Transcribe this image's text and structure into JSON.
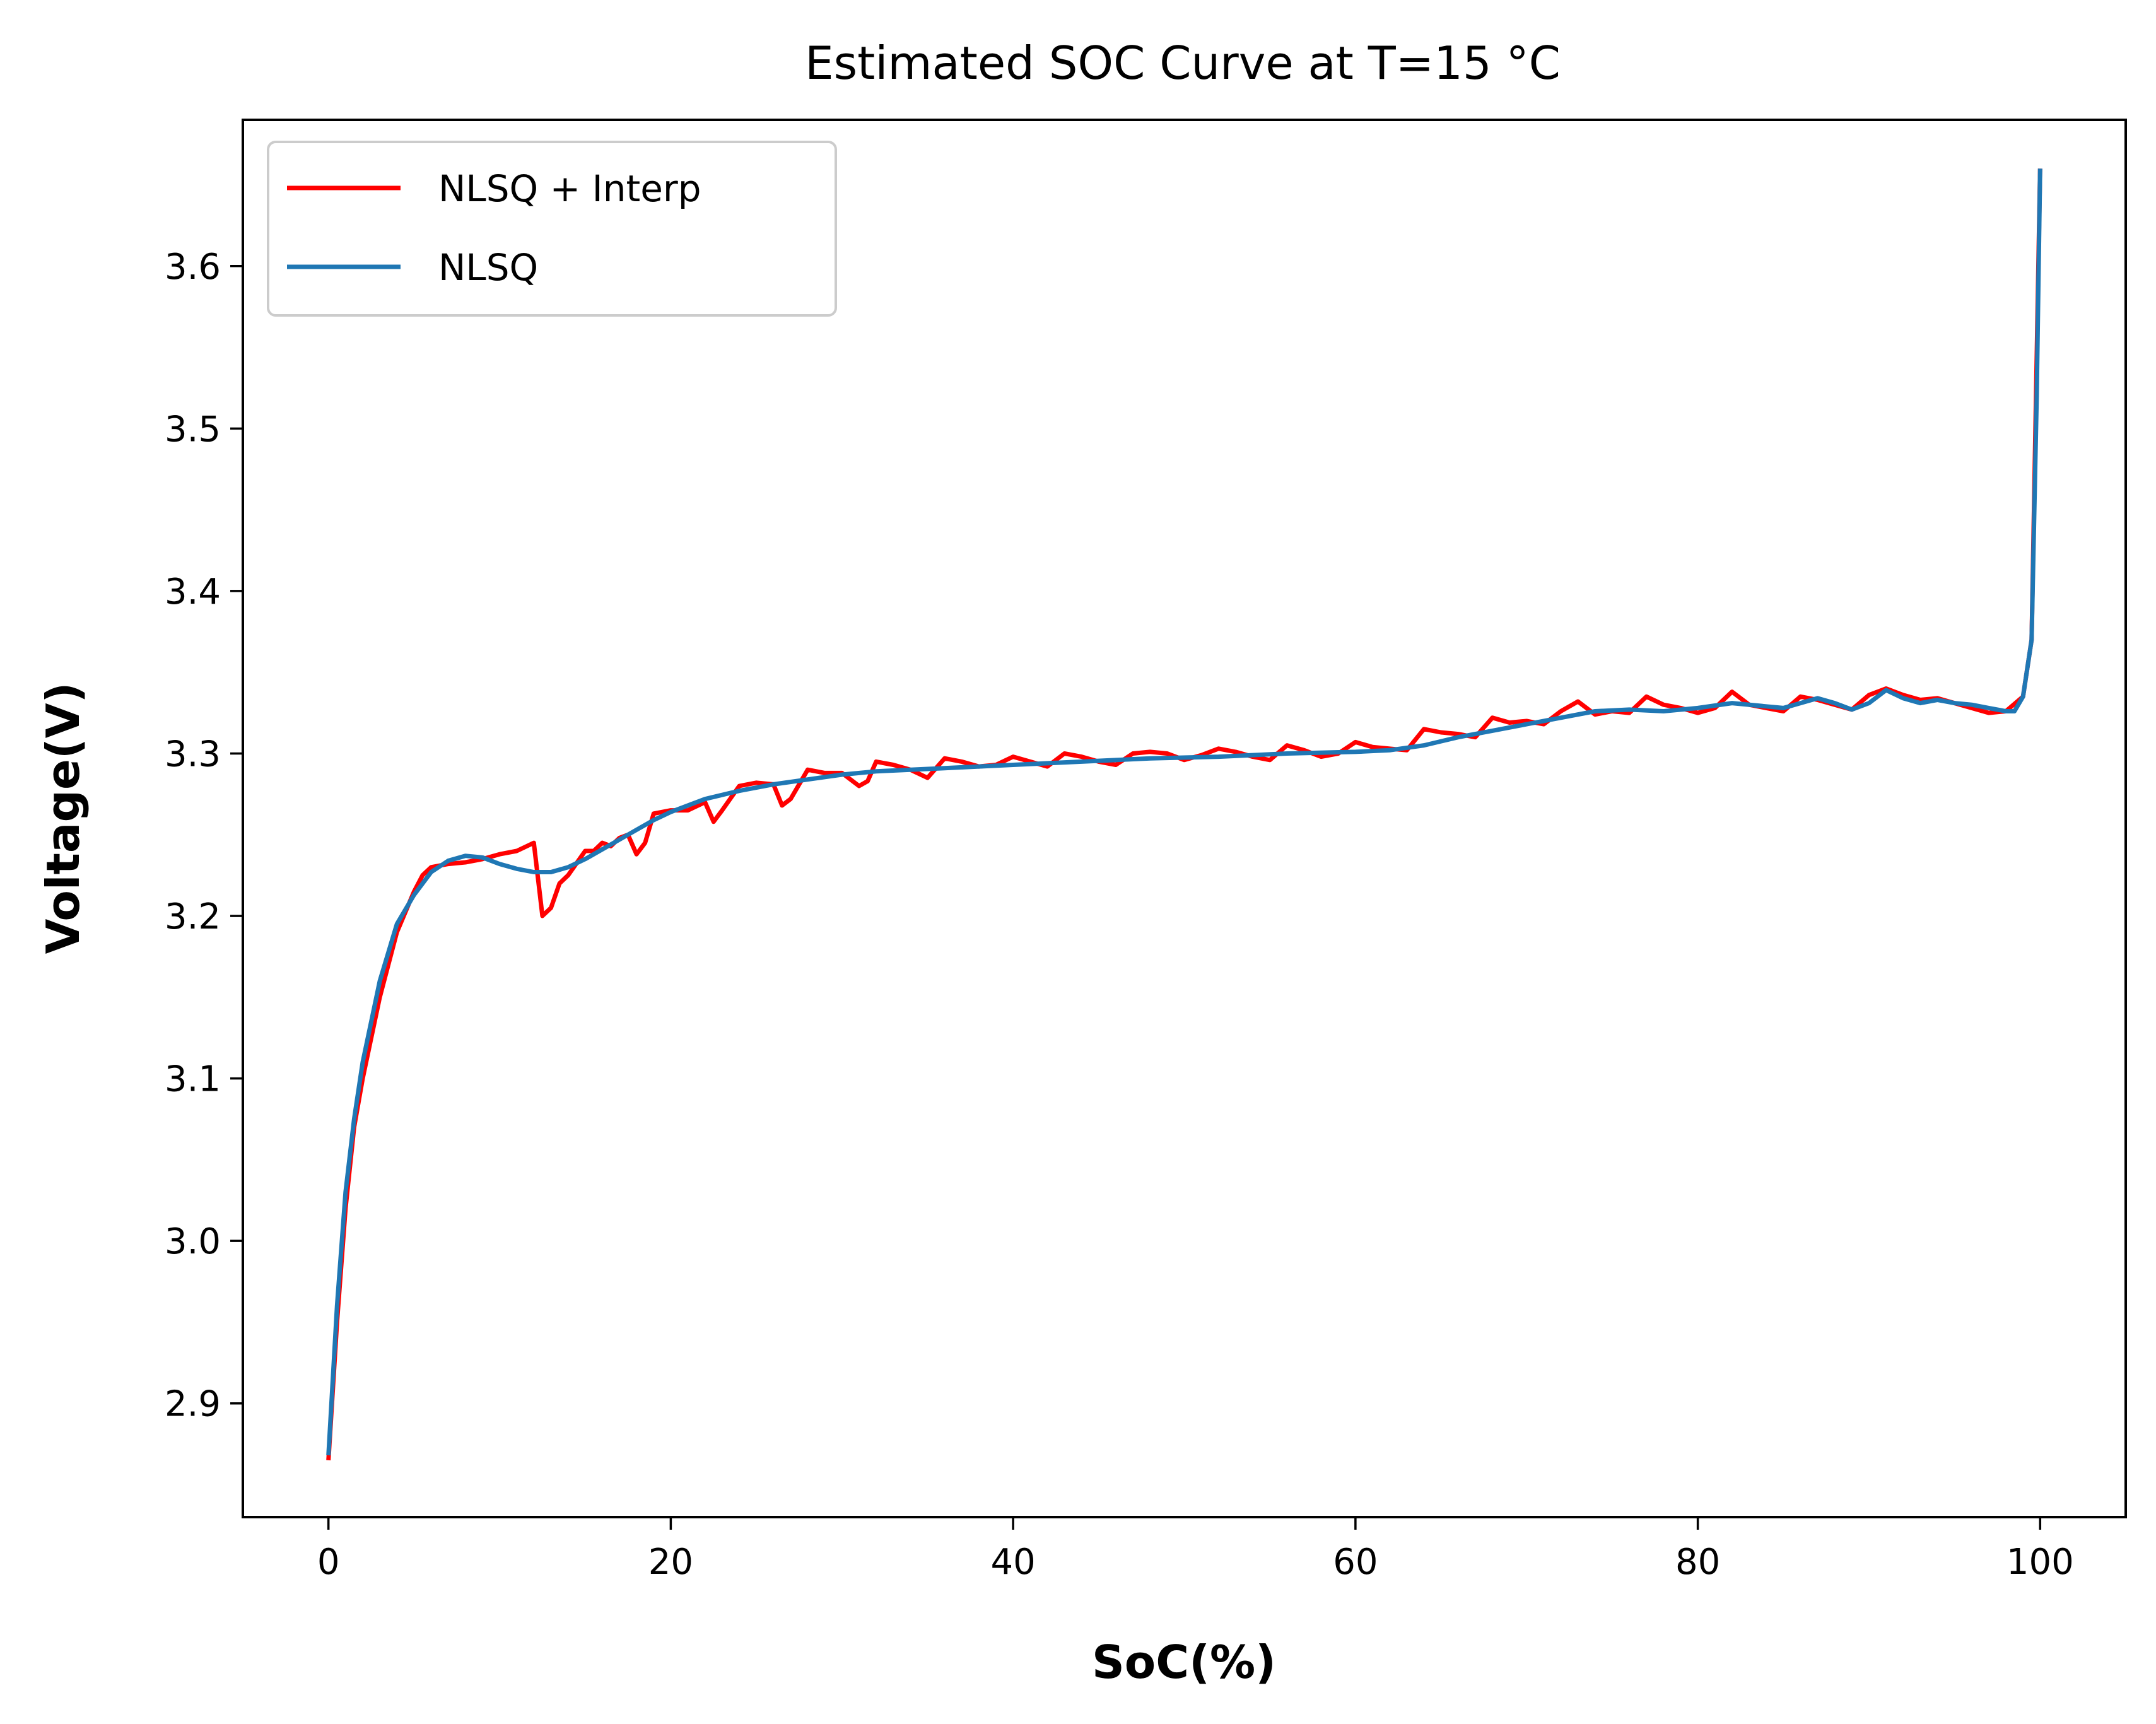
{
  "chart_data": {
    "type": "line",
    "title": "Estimated SOC Curve at T=15 °C",
    "xlabel": "SoC(%)",
    "ylabel": "Voltage(V)",
    "xlim": [
      -5,
      105
    ],
    "ylim": [
      2.83,
      3.69
    ],
    "xticks": [
      0,
      20,
      40,
      60,
      80,
      100
    ],
    "xtick_labels": [
      "0",
      "20",
      "40",
      "60",
      "80",
      "100"
    ],
    "yticks": [
      2.9,
      3.0,
      3.1,
      3.2,
      3.3,
      3.4,
      3.5,
      3.6
    ],
    "ytick_labels": [
      "2.9",
      "3.0",
      "3.1",
      "3.2",
      "3.3",
      "3.4",
      "3.5",
      "3.6"
    ],
    "grid": false,
    "legend_position": "top-left",
    "series": [
      {
        "name": "NLSQ + Interp",
        "color": "#ff0000",
        "x": [
          0,
          0.5,
          1,
          1.5,
          2,
          3,
          4,
          5,
          5.5,
          6,
          7,
          8,
          9,
          10,
          11,
          12,
          12.5,
          13,
          13.5,
          14,
          15,
          15.5,
          16,
          16.5,
          17,
          17.5,
          18,
          18.5,
          19,
          20,
          21,
          22,
          22.5,
          23,
          24,
          25,
          26,
          26.5,
          27,
          28,
          29,
          30,
          31,
          31.5,
          32,
          33,
          34,
          35,
          36,
          37,
          38,
          39,
          40,
          41,
          42,
          43,
          44,
          45,
          46,
          47,
          48,
          49,
          50,
          51,
          52,
          53,
          54,
          55,
          56,
          57,
          58,
          59,
          60,
          61,
          62,
          63,
          64,
          65,
          66,
          67,
          68,
          69,
          70,
          71,
          72,
          73,
          74,
          75,
          76,
          77,
          78,
          79,
          80,
          81,
          82,
          83,
          84,
          85,
          86,
          87,
          88,
          89,
          90,
          91,
          92,
          93,
          94,
          95,
          96,
          97,
          98,
          99,
          99.5,
          100
        ],
        "y": [
          2.865,
          2.95,
          3.02,
          3.07,
          3.1,
          3.15,
          3.19,
          3.215,
          3.225,
          3.23,
          3.232,
          3.233,
          3.235,
          3.238,
          3.24,
          3.245,
          3.2,
          3.205,
          3.22,
          3.225,
          3.24,
          3.24,
          3.245,
          3.243,
          3.248,
          3.25,
          3.238,
          3.245,
          3.263,
          3.265,
          3.265,
          3.27,
          3.258,
          3.265,
          3.28,
          3.282,
          3.281,
          3.268,
          3.272,
          3.29,
          3.288,
          3.288,
          3.28,
          3.283,
          3.295,
          3.293,
          3.29,
          3.285,
          3.297,
          3.295,
          3.292,
          3.293,
          3.298,
          3.295,
          3.292,
          3.3,
          3.298,
          3.295,
          3.293,
          3.3,
          3.301,
          3.3,
          3.296,
          3.299,
          3.303,
          3.301,
          3.298,
          3.296,
          3.305,
          3.302,
          3.298,
          3.3,
          3.307,
          3.304,
          3.303,
          3.302,
          3.315,
          3.313,
          3.312,
          3.31,
          3.322,
          3.319,
          3.32,
          3.318,
          3.326,
          3.332,
          3.324,
          3.326,
          3.325,
          3.335,
          3.33,
          3.328,
          3.325,
          3.328,
          3.338,
          3.33,
          3.328,
          3.326,
          3.335,
          3.333,
          3.33,
          3.327,
          3.336,
          3.34,
          3.336,
          3.333,
          3.334,
          3.331,
          3.328,
          3.325,
          3.326,
          3.335,
          3.37,
          3.66
        ]
      },
      {
        "name": "NLSQ",
        "color": "#1f77b4",
        "x": [
          0,
          0.5,
          1,
          1.5,
          2,
          3,
          4,
          5,
          6,
          7,
          8,
          9,
          10,
          11,
          12,
          13,
          14,
          15,
          16,
          17,
          18,
          19,
          20,
          22,
          24,
          26,
          28,
          30,
          32,
          34,
          36,
          38,
          40,
          44,
          48,
          52,
          56,
          60,
          62,
          64,
          66,
          68,
          70,
          72,
          74,
          76,
          78,
          80,
          82,
          84,
          85,
          86,
          87,
          88,
          89,
          90,
          91,
          92,
          93,
          94,
          95,
          96,
          97,
          98,
          98.5,
          99,
          99.5,
          99.8,
          100
        ],
        "y": [
          2.868,
          2.96,
          3.03,
          3.075,
          3.11,
          3.16,
          3.195,
          3.213,
          3.227,
          3.234,
          3.237,
          3.236,
          3.232,
          3.229,
          3.227,
          3.227,
          3.23,
          3.235,
          3.241,
          3.247,
          3.253,
          3.259,
          3.264,
          3.272,
          3.277,
          3.281,
          3.284,
          3.287,
          3.289,
          3.29,
          3.291,
          3.292,
          3.293,
          3.295,
          3.297,
          3.298,
          3.3,
          3.301,
          3.302,
          3.305,
          3.31,
          3.314,
          3.318,
          3.322,
          3.326,
          3.327,
          3.326,
          3.328,
          3.331,
          3.329,
          3.328,
          3.331,
          3.334,
          3.331,
          3.327,
          3.331,
          3.339,
          3.334,
          3.331,
          3.333,
          3.331,
          3.33,
          3.328,
          3.326,
          3.326,
          3.335,
          3.37,
          3.52,
          3.66
        ]
      }
    ]
  }
}
